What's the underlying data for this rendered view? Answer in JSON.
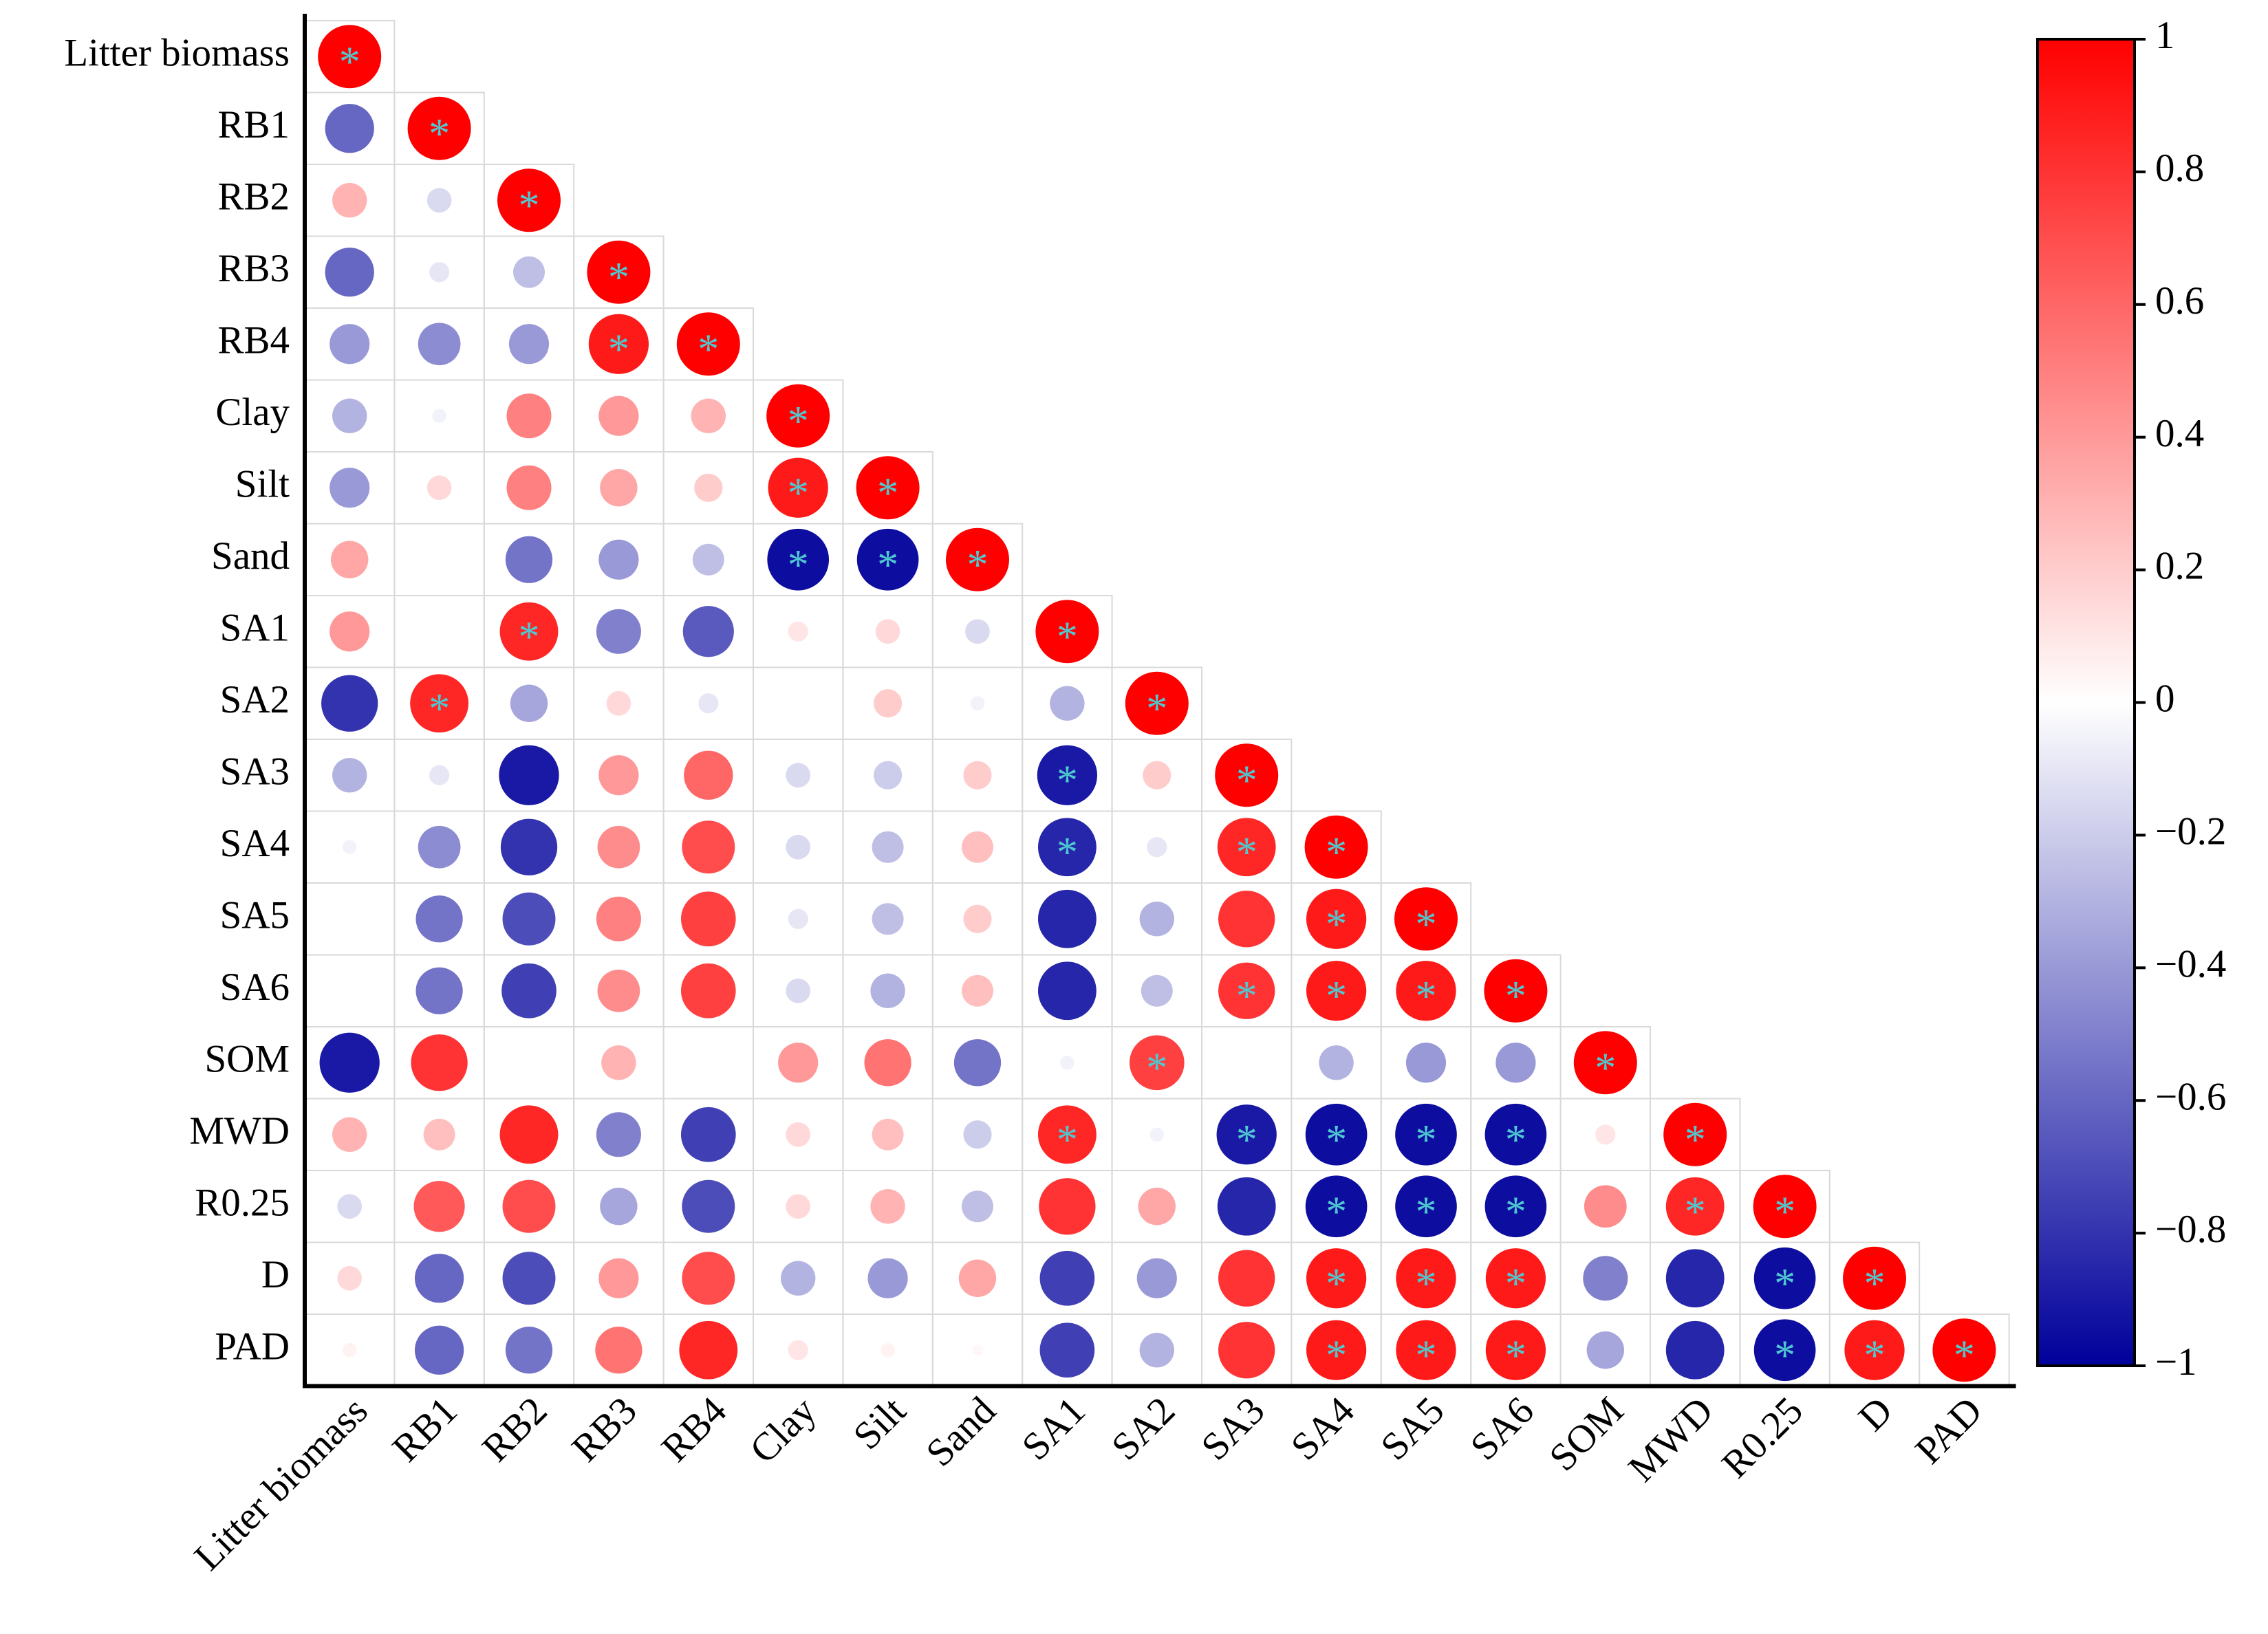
{
  "chart_data": {
    "type": "correlation",
    "labels": [
      "Litter biomass",
      "RB1",
      "RB2",
      "RB3",
      "RB4",
      "Clay",
      "Silt",
      "Sand",
      "SA1",
      "SA2",
      "SA3",
      "SA4",
      "SA5",
      "SA6",
      "SOM",
      "MWD",
      "R0.25",
      "D",
      "PAD"
    ],
    "matrix": [
      [
        1
      ],
      [
        -0.6,
        1
      ],
      [
        0.3,
        -0.15,
        1
      ],
      [
        -0.6,
        -0.1,
        -0.25,
        1
      ],
      [
        -0.4,
        -0.45,
        -0.4,
        0.9,
        1
      ],
      [
        -0.3,
        -0.05,
        0.5,
        0.4,
        0.3,
        1
      ],
      [
        -0.4,
        0.15,
        0.5,
        0.35,
        0.2,
        0.9,
        1
      ],
      [
        0.35,
        0,
        -0.55,
        -0.4,
        -0.25,
        -0.95,
        -0.95,
        1
      ],
      [
        0.4,
        0,
        0.85,
        -0.5,
        -0.65,
        0.1,
        0.15,
        -0.15,
        1
      ],
      [
        -0.8,
        0.85,
        -0.35,
        0.15,
        -0.1,
        0,
        0.2,
        -0.05,
        -0.3,
        1
      ],
      [
        -0.3,
        -0.1,
        -0.9,
        0.4,
        0.6,
        -0.15,
        -0.2,
        0.2,
        -0.9,
        0.2,
        1
      ],
      [
        -0.05,
        -0.45,
        -0.8,
        0.45,
        0.7,
        -0.15,
        -0.25,
        0.25,
        -0.85,
        -0.1,
        0.85,
        1
      ],
      [
        0,
        -0.55,
        -0.7,
        0.5,
        0.75,
        -0.1,
        -0.25,
        0.2,
        -0.85,
        -0.3,
        0.8,
        0.9,
        1
      ],
      [
        0,
        -0.55,
        -0.75,
        0.45,
        0.75,
        -0.15,
        -0.3,
        0.25,
        -0.85,
        -0.25,
        0.8,
        0.9,
        0.9,
        1
      ],
      [
        -0.9,
        0.8,
        0,
        0.3,
        0,
        0.4,
        0.55,
        -0.55,
        -0.05,
        0.75,
        0,
        -0.3,
        -0.4,
        -0.4,
        1
      ],
      [
        0.3,
        0.25,
        0.85,
        -0.5,
        -0.75,
        0.15,
        0.25,
        -0.2,
        0.85,
        -0.05,
        -0.9,
        -0.95,
        -0.95,
        -0.95,
        0.1,
        1
      ],
      [
        -0.15,
        0.65,
        0.7,
        -0.35,
        -0.7,
        0.15,
        0.3,
        -0.25,
        0.8,
        0.35,
        -0.85,
        -0.95,
        -0.95,
        -0.95,
        0.45,
        0.85,
        1
      ],
      [
        0.15,
        -0.6,
        -0.7,
        0.4,
        0.7,
        -0.3,
        -0.4,
        0.35,
        -0.75,
        -0.4,
        0.8,
        0.9,
        0.9,
        0.9,
        -0.5,
        -0.85,
        -0.95,
        1
      ],
      [
        0.05,
        -0.6,
        -0.55,
        0.55,
        0.85,
        0.1,
        0.05,
        0.03,
        -0.75,
        -0.3,
        0.8,
        0.9,
        0.9,
        0.9,
        -0.35,
        -0.85,
        -0.95,
        0.9,
        1
      ]
    ],
    "significant": [
      [
        0
      ],
      [
        1
      ],
      [
        2
      ],
      [
        3
      ],
      [
        3,
        4
      ],
      [
        5
      ],
      [
        5,
        6
      ],
      [
        5,
        6,
        7
      ],
      [
        2,
        8
      ],
      [
        1,
        9
      ],
      [
        8,
        10
      ],
      [
        8,
        10,
        11
      ],
      [
        11,
        12
      ],
      [
        10,
        11,
        12,
        13
      ],
      [
        9,
        14
      ],
      [
        8,
        10,
        11,
        12,
        13,
        15
      ],
      [
        11,
        12,
        13,
        15,
        16
      ],
      [
        11,
        12,
        13,
        16,
        17
      ],
      [
        11,
        12,
        13,
        16,
        17,
        18
      ]
    ],
    "sig_label": "*",
    "sig_color": "#4fc8d0",
    "colors": [
      "#00009b",
      "#ffffff",
      "#ff0000"
    ],
    "clim": [
      -1,
      1
    ],
    "cticks": [
      {
        "value": -1,
        "label": "−1"
      },
      {
        "value": -0.8,
        "label": "−0.8"
      },
      {
        "value": -0.6,
        "label": "−0.6"
      },
      {
        "value": -0.4,
        "label": "−0.4"
      },
      {
        "value": -0.2,
        "label": "−0.2"
      },
      0,
      0.2,
      0.4,
      0.6,
      0.8,
      1
    ]
  }
}
